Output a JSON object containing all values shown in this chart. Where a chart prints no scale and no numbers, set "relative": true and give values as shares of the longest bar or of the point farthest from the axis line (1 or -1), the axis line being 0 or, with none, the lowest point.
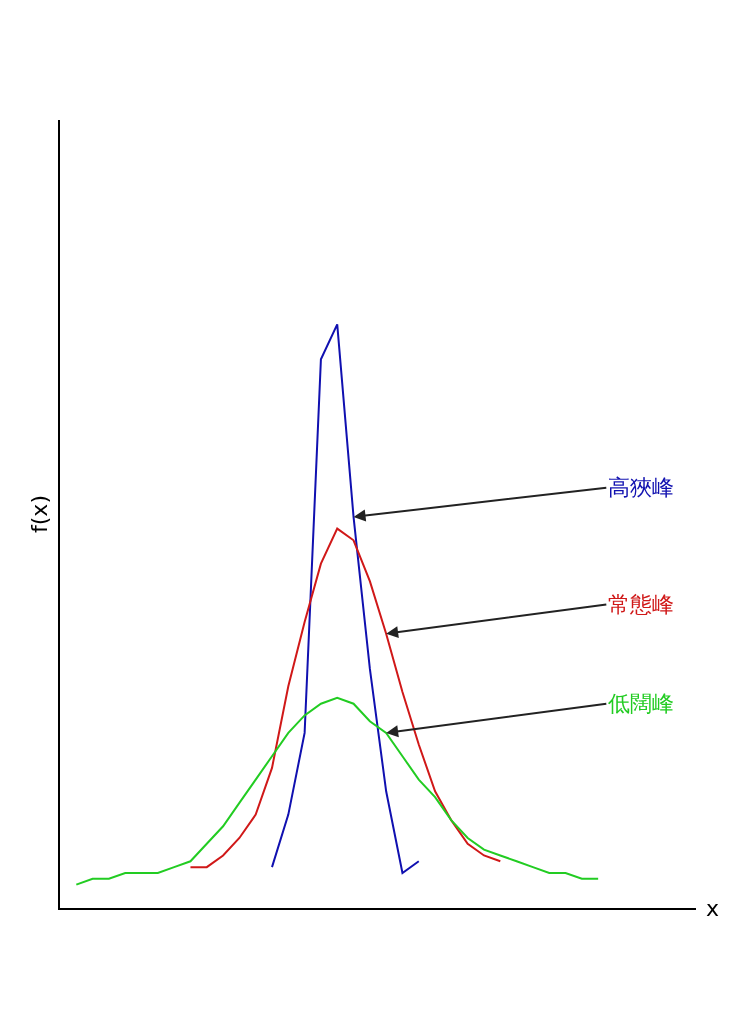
{
  "chart_data": {
    "type": "line",
    "relative": true,
    "xlabel": "x",
    "ylabel": "f(x)",
    "legend": false,
    "marker": "none",
    "line_style": "solid",
    "categories": [
      null,
      null,
      null,
      null,
      null,
      null,
      null,
      null,
      null,
      null,
      null,
      null,
      null,
      null,
      null,
      null,
      null,
      null,
      null,
      null,
      null,
      null,
      null,
      null,
      null,
      null,
      null,
      null,
      null,
      null,
      null,
      null,
      null
    ],
    "series": [
      {
        "name": "高狹峰",
        "color": "#1010b0",
        "values": [
          null,
          null,
          null,
          null,
          null,
          null,
          null,
          null,
          null,
          null,
          null,
          null,
          0.07,
          0.16,
          0.3,
          0.94,
          1,
          0.67,
          0.41,
          0.2,
          0.06,
          0.08,
          null,
          null,
          null,
          null,
          null,
          null,
          null,
          null,
          null,
          null,
          null
        ]
      },
      {
        "name": "常態峰",
        "color": "#d01818",
        "values": [
          null,
          null,
          null,
          null,
          null,
          null,
          null,
          0.07,
          0.07,
          0.09,
          0.12,
          0.16,
          0.24,
          0.38,
          0.49,
          0.59,
          0.65,
          0.63,
          0.56,
          0.47,
          0.37,
          0.28,
          0.2,
          0.15,
          0.11,
          0.09,
          0.08,
          null,
          null,
          null,
          null,
          null,
          null
        ]
      },
      {
        "name": "低闊峰",
        "color": "#22cc22",
        "values": [
          0.04,
          0.05,
          0.05,
          0.06,
          0.06,
          0.06,
          0.07,
          0.08,
          0.11,
          0.14,
          0.18,
          0.22,
          0.26,
          0.3,
          0.33,
          0.35,
          0.36,
          0.35,
          0.32,
          0.3,
          0.26,
          0.22,
          0.19,
          0.15,
          0.12,
          0.1,
          0.09,
          0.08,
          0.07,
          0.06,
          0.06,
          0.05,
          0.05
        ]
      }
    ]
  }
}
